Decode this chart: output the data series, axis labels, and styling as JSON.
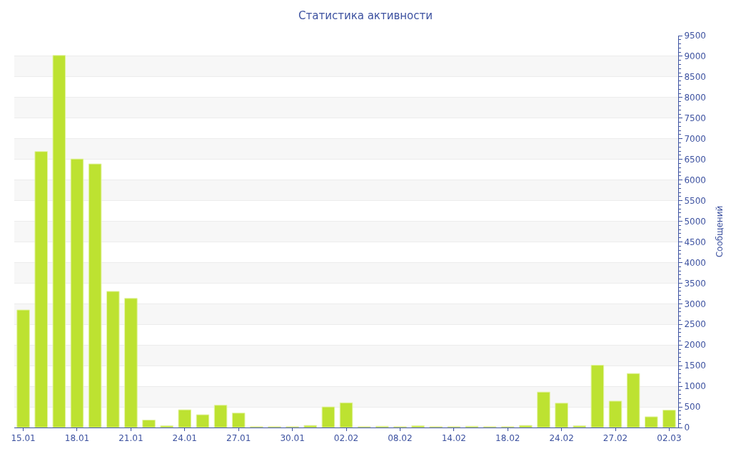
{
  "chart_data": {
    "type": "bar",
    "title": "Статистика активности",
    "ylabel": "Сообщений",
    "categories": [
      "15.01",
      null,
      null,
      "18.01",
      null,
      null,
      "21.01",
      null,
      null,
      "24.01",
      null,
      null,
      "27.01",
      null,
      null,
      "30.01",
      null,
      null,
      "02.02",
      null,
      null,
      "08.02",
      null,
      null,
      "14.02",
      null,
      null,
      "18.02",
      null,
      null,
      "24.02",
      null,
      null,
      "27.02",
      null,
      null,
      "02.03"
    ],
    "values": [
      2850,
      6690,
      9020,
      6510,
      6390,
      3300,
      3130,
      180,
      40,
      430,
      310,
      540,
      350,
      20,
      20,
      20,
      50,
      500,
      600,
      20,
      30,
      20,
      40,
      20,
      20,
      30,
      20,
      20,
      50,
      860,
      590,
      40,
      1510,
      640,
      1310,
      260,
      420
    ],
    "color": "#bde231",
    "ylim": [
      0,
      9500
    ],
    "yticks": [
      0,
      500,
      1000,
      1500,
      2000,
      2500,
      3000,
      3500,
      4000,
      4500,
      5000,
      5500,
      6000,
      6500,
      7000,
      7500,
      8000,
      8500,
      9000,
      9500
    ],
    "grid": "y",
    "legend": false
  }
}
